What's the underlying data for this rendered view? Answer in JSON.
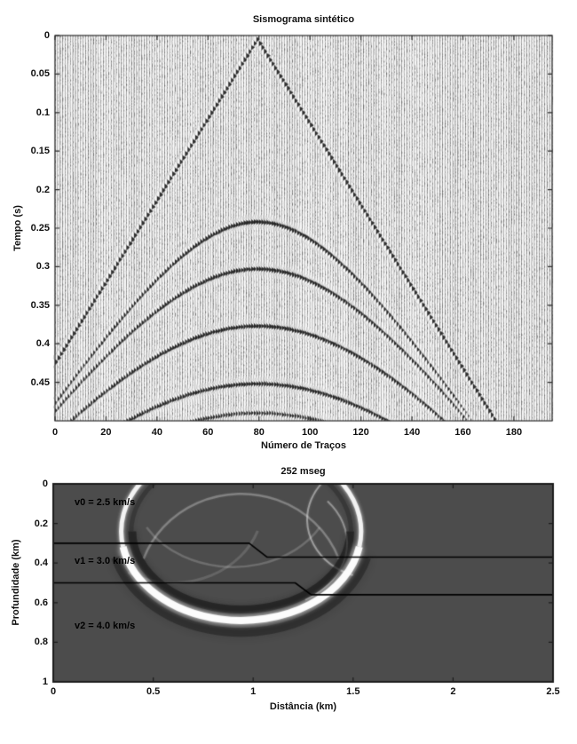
{
  "figure": {
    "kind": "matlab-style seismic modelling figure",
    "colors": {
      "figure_bg": "#ffffff",
      "trace_ink": "#1a1a1a",
      "trace_baseline": "#9a9a9a",
      "snapshot_bg": "#4c4c4c",
      "wavefront": "#ffffff",
      "interface_line": "#000000",
      "axis_line": "#222222",
      "text": "#111111"
    }
  },
  "chart_data": [
    {
      "type": "seismogram-wiggle",
      "title": "Sismograma sintético",
      "xlabel": "Número de Traços",
      "ylabel": "Tempo (s)",
      "xlim": [
        0,
        195
      ],
      "ylim": [
        0,
        0.5
      ],
      "xticks": [
        0,
        20,
        40,
        60,
        80,
        100,
        120,
        140,
        160,
        180
      ],
      "yticks": [
        0,
        0.05,
        0.1,
        0.15,
        0.2,
        0.25,
        0.3,
        0.35,
        0.4,
        0.45
      ],
      "grid": false,
      "n_traces": 196,
      "source_trace": 79,
      "slope_s_per_trace": 0.0053,
      "wavelet_hz": 70,
      "noise": 0.18,
      "events": [
        {
          "kind": "direct",
          "t0": 0.005,
          "velocity_ratio": 1.0,
          "amp": 1.0
        },
        {
          "kind": "reflection",
          "t0": 0.242,
          "velocity_ratio": 1.02,
          "amp": 0.9
        },
        {
          "kind": "reflection",
          "t0": 0.303,
          "velocity_ratio": 1.1,
          "amp": 0.85
        },
        {
          "kind": "reflection",
          "t0": 0.377,
          "velocity_ratio": 1.18,
          "amp": 0.85
        },
        {
          "kind": "reflection",
          "t0": 0.452,
          "velocity_ratio": 1.26,
          "amp": 0.8
        },
        {
          "kind": "reflection",
          "t0": 0.49,
          "velocity_ratio": 1.3,
          "amp": 0.6
        }
      ]
    },
    {
      "type": "wavefield-snapshot",
      "title": "252 mseg",
      "xlabel": "Distância (km)",
      "ylabel": "Profundidade (km)",
      "xlim": [
        0,
        2.5
      ],
      "ylim": [
        0,
        1
      ],
      "xticks": [
        0,
        0.5,
        1,
        1.5,
        2,
        2.5
      ],
      "yticks": [
        0,
        0.2,
        0.4,
        0.6,
        0.8,
        1
      ],
      "grid": false,
      "layers": [
        {
          "label": "v0 = 2.5 km/s",
          "velocity_km_s": 2.5
        },
        {
          "label": "v1 = 3.0 km/s",
          "velocity_km_s": 3.0
        },
        {
          "label": "v2 = 4.0 km/s",
          "velocity_km_s": 4.0
        }
      ],
      "interfaces": [
        {
          "points": [
            [
              0,
              0.3
            ],
            [
              0.98,
              0.3
            ],
            [
              1.07,
              0.37
            ],
            [
              2.5,
              0.37
            ]
          ]
        },
        {
          "points": [
            [
              0,
              0.5
            ],
            [
              1.21,
              0.5
            ],
            [
              1.29,
              0.56
            ],
            [
              2.5,
              0.56
            ]
          ]
        }
      ],
      "main_wavefront": {
        "cx": 0.94,
        "cy": 0.24,
        "rx": 0.6,
        "ry": 0.45
      },
      "secondary_fronts": [
        {
          "cx": 0.94,
          "cy": 0.55,
          "rx": 0.52,
          "ry": 0.5,
          "from": 200,
          "to": 340,
          "alpha": 0.3,
          "width": 2.5
        },
        {
          "cx": 0.9,
          "cy": 0.02,
          "rx": 0.5,
          "ry": 0.4,
          "from": 30,
          "to": 150,
          "alpha": 0.2,
          "width": 2.5
        },
        {
          "cx": 1.62,
          "cy": 0.18,
          "rx": 0.35,
          "ry": 0.3,
          "from": 110,
          "to": 225,
          "alpha": 0.45,
          "width": 2
        },
        {
          "cx": 1.05,
          "cy": 0.3,
          "rx": 0.42,
          "ry": 0.33,
          "from": -40,
          "to": 60,
          "alpha": 0.4,
          "width": 2
        },
        {
          "cx": 0.6,
          "cy": 0.1,
          "rx": 0.45,
          "ry": 0.4,
          "from": 20,
          "to": 120,
          "alpha": 0.15,
          "width": 3
        }
      ]
    }
  ]
}
